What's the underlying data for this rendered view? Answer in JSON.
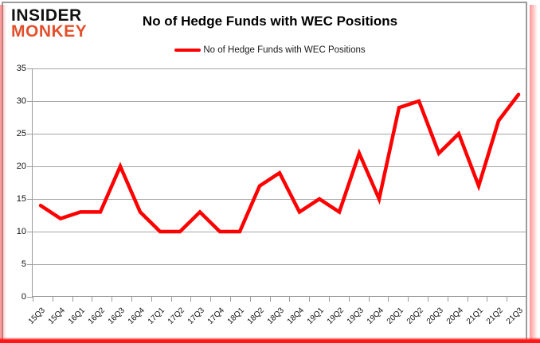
{
  "logo": {
    "line1": "INSIDER",
    "line2": "MONKEY"
  },
  "header": {
    "title": "No of Hedge Funds with WEC Positions"
  },
  "legend": {
    "label": "No of Hedge Funds with WEC Positions"
  },
  "colors": {
    "line": "#fe0000",
    "grid": "#a6a6a6",
    "axis": "#9b9b9b",
    "logo_accent": "#e2502c",
    "text": "#111111"
  },
  "chart_data": {
    "type": "line",
    "title": "No of Hedge Funds with WEC Positions",
    "categories": [
      "15Q3",
      "15Q4",
      "16Q1",
      "16Q2",
      "16Q3",
      "16Q4",
      "17Q1",
      "17Q2",
      "17Q3",
      "17Q4",
      "18Q1",
      "18Q2",
      "18Q3",
      "18Q4",
      "19Q1",
      "19Q2",
      "19Q3",
      "19Q4",
      "20Q1",
      "20Q2",
      "20Q3",
      "20Q4",
      "21Q1",
      "21Q2",
      "21Q3"
    ],
    "series": [
      {
        "name": "No of Hedge Funds with WEC Positions",
        "values": [
          14,
          12,
          13,
          13,
          20,
          13,
          10,
          10,
          13,
          10,
          10,
          17,
          19,
          13,
          15,
          13,
          22,
          15,
          29,
          30,
          22,
          25,
          17,
          27,
          31
        ]
      }
    ],
    "xlabel": "",
    "ylabel": "",
    "ylim": [
      0,
      35
    ],
    "yticks": [
      0,
      5,
      10,
      15,
      20,
      25,
      30,
      35
    ],
    "grid": true,
    "legend_position": "top-center",
    "line_color": "#fe0000"
  }
}
